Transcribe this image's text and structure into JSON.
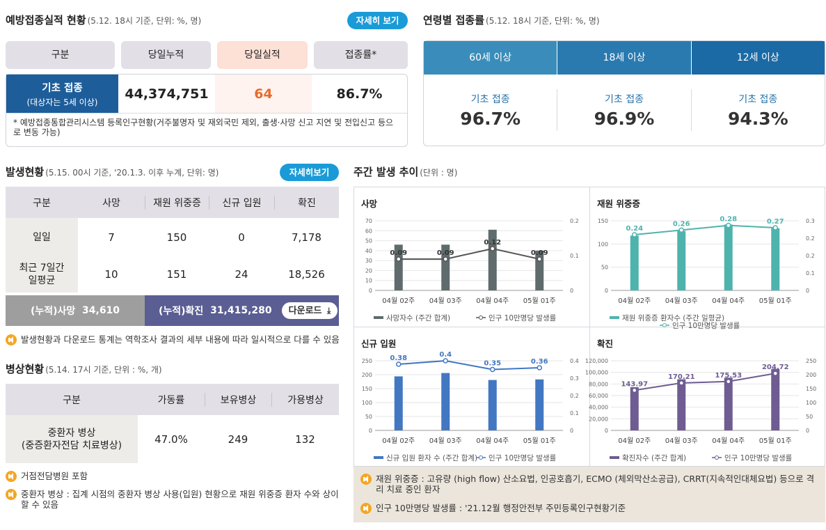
{
  "vaccination": {
    "title": "예방접종실적 현황",
    "sub": "(5.12. 18시 기준, 단위: %, 명)",
    "detail_btn": "자세히 보기",
    "headers": [
      "구분",
      "당일누적",
      "당일실적",
      "접종률*"
    ],
    "row_label": "기초 접종",
    "row_sub": "(대상자는 5세 이상)",
    "cumulative": "44,374,751",
    "daily": "64",
    "rate": "86.7%",
    "daily_color": "#e86a2c",
    "note": "* 예방접종통합관리시스템 등록인구현황(거주불명자 및 재외국민 제외, 출생·사망 신고 지연 및 전입신고 등으로 변동 가능)"
  },
  "age_rate": {
    "title": "연령별 접종률",
    "sub": "(5.12. 18시 기준, 단위: %, 명)",
    "tabs": [
      "60세 이상",
      "18세 이상",
      "12세 이상"
    ],
    "tab_colors": [
      "#3a8dba",
      "#2a7ab0",
      "#1b6aa5"
    ],
    "items": [
      {
        "label": "기초 접종",
        "value": "96.7%"
      },
      {
        "label": "기초 접종",
        "value": "96.9%"
      },
      {
        "label": "기초 접종",
        "value": "94.3%"
      }
    ]
  },
  "occurrence": {
    "title": "발생현황",
    "sub": "(5.15. 00시 기준, '20.1.3. 이후 누계, 단위: 명)",
    "detail_btn": "자세히보기",
    "headers": [
      "구분",
      "사망",
      "재원 위중증",
      "신규 입원",
      "확진"
    ],
    "rows": [
      {
        "label": "일일",
        "death": "7",
        "severe": "150",
        "admission": "0",
        "confirmed": "7,178"
      },
      {
        "label": "최근 7일간 일평균",
        "death": "10",
        "severe": "151",
        "admission": "24",
        "confirmed": "18,526"
      }
    ],
    "cum_death_label": "(누적)사망",
    "cum_death": "34,610",
    "cum_conf_label": "(누적)확진",
    "cum_conf": "31,415,280",
    "download": "다운로드",
    "note": "발생현황과 다운로드 통계는 역학조사 결과의 세부 내용에 따라 일시적으로 다를 수 있음"
  },
  "beds": {
    "title": "병상현황",
    "sub": "(5.14. 17시 기준, 단위 : %, 개)",
    "headers": [
      "구분",
      "가동률",
      "보유병상",
      "가용병상"
    ],
    "row_label": "중환자 병상",
    "row_sub": "(중증환자전담 치료병상)",
    "rate": "47.0%",
    "beds": "249",
    "available": "132",
    "note1": "거점전담병원 포함",
    "note2": "중환자 병상 : 집계 시점의 중환자 병상 사용(입원) 현황으로 재원 위중증 환자 수와 상이할 수 있음"
  },
  "weekly": {
    "title": "주간 발생 추이",
    "sub": "(단위 : 명)",
    "note1": "재원 위중증 : 고유량 (high flow) 산소요법, 인공호흡기, ECMO (체외막산소공급), CRRT(지속적인대체요법) 등으로 격리 치료 중인 환자",
    "note2": "인구 10만명당 발생률 : '21.12월 행정안전부 주민등록인구현황기준"
  },
  "chart_data": [
    {
      "type": "bar",
      "title": "사망",
      "categories": [
        "04월 02주",
        "04월 03주",
        "04월 04주",
        "05월 01주"
      ],
      "series": [
        {
          "name": "사망자수 (주간 합계)",
          "values": [
            46,
            46,
            61,
            40
          ],
          "color": "#5f6b6d"
        },
        {
          "name": "인구 10만명당 발생률",
          "values": [
            0.09,
            0.09,
            0.12,
            0.09
          ],
          "color": "#5f6b6d",
          "axis": "right",
          "kind": "line"
        }
      ],
      "ylim": [
        0,
        70
      ],
      "yticks": [
        0,
        10,
        20,
        30,
        40,
        50,
        60,
        70
      ],
      "y2lim": [
        0,
        0.2
      ],
      "y2ticks": [
        "0",
        "0.1",
        "0.2"
      ],
      "labels": [
        "0.09",
        "0.09",
        "0.12",
        "0.09"
      ]
    },
    {
      "type": "bar",
      "title": "재원 위중증",
      "categories": [
        "04월 02주",
        "04월 03주",
        "04월 04주",
        "05월 01주"
      ],
      "series": [
        {
          "name": "재원 위중증 환자수 (주간 일평균)",
          "values": [
            118,
            128,
            142,
            134
          ],
          "color": "#4fb3ad"
        },
        {
          "name": "인구 10만명당 발생률",
          "values": [
            0.24,
            0.26,
            0.28,
            0.27
          ],
          "color": "#4fb3ad",
          "axis": "right",
          "kind": "line"
        }
      ],
      "ylim": [
        0,
        150
      ],
      "yticks": [
        0,
        50,
        100,
        150
      ],
      "y2lim": [
        0,
        0.3
      ],
      "y2ticks": [
        "0",
        "0.1",
        "0.2",
        "0.2",
        "0.3"
      ],
      "labels": [
        "0.24",
        "0.26",
        "0.28",
        "0.27"
      ]
    },
    {
      "type": "bar",
      "title": "신규 입원",
      "categories": [
        "04월 02주",
        "04월 03주",
        "04월 04주",
        "05월 01주"
      ],
      "series": [
        {
          "name": "신규 입원 환자 수 (주간 합계)",
          "values": [
            194,
            206,
            181,
            183
          ],
          "color": "#4277c2"
        },
        {
          "name": "인구 10만명당 발생률",
          "values": [
            0.38,
            0.4,
            0.35,
            0.36
          ],
          "color": "#4277c2",
          "axis": "right",
          "kind": "line"
        }
      ],
      "ylim": [
        0,
        250
      ],
      "yticks": [
        0,
        50,
        100,
        150,
        200,
        250
      ],
      "y2lim": [
        0,
        0.4
      ],
      "y2ticks": [
        "0",
        "0.1",
        "0.2",
        "0.3",
        "0.4"
      ],
      "labels": [
        "0.38",
        "0.4",
        "0.35",
        "0.36"
      ]
    },
    {
      "type": "bar",
      "title": "확진",
      "categories": [
        "04월 02주",
        "04월 03주",
        "04월 04주",
        "05월 01주"
      ],
      "series": [
        {
          "name": "확진자수 (주간 합계)",
          "values": [
            74500,
            88100,
            90800,
            106000
          ],
          "color": "#6e5c92"
        },
        {
          "name": "인구 10만명당 발생률",
          "values": [
            143.97,
            170.21,
            175.53,
            204.72
          ],
          "color": "#6e5c92",
          "axis": "right",
          "kind": "line"
        }
      ],
      "ylim": [
        0,
        120000
      ],
      "yticks": [
        "0",
        "20,000",
        "40,000",
        "60,000",
        "80,000",
        "100,000",
        "120,000"
      ],
      "y2lim": [
        0,
        250
      ],
      "y2ticks": [
        "0",
        "50",
        "100",
        "150",
        "200",
        "250"
      ],
      "labels": [
        "143.97",
        "170.21",
        "175.53",
        "204.72"
      ]
    }
  ]
}
